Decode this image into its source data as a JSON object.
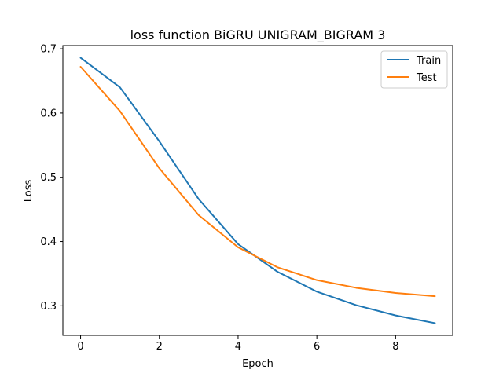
{
  "chart_data": {
    "type": "line",
    "title": "loss function BiGRU UNIGRAM_BIGRAM 3",
    "xlabel": "Epoch",
    "ylabel": "Loss",
    "x": [
      0,
      1,
      2,
      3,
      4,
      5,
      6,
      7,
      8,
      9
    ],
    "xlim": [
      -0.45,
      9.45
    ],
    "ylim": [
      0.254,
      0.705
    ],
    "xticks": [
      0,
      2,
      4,
      6,
      8
    ],
    "yticks": [
      0.3,
      0.4,
      0.5,
      0.6,
      0.7
    ],
    "grid": false,
    "legend_position": "top-right",
    "series": [
      {
        "name": "Train",
        "color": "#1f77b4",
        "values": [
          0.686,
          0.64,
          0.556,
          0.466,
          0.396,
          0.353,
          0.322,
          0.301,
          0.285,
          0.273
        ]
      },
      {
        "name": "Test",
        "color": "#ff7f0e",
        "values": [
          0.672,
          0.603,
          0.514,
          0.441,
          0.391,
          0.36,
          0.34,
          0.328,
          0.32,
          0.315
        ]
      }
    ]
  }
}
